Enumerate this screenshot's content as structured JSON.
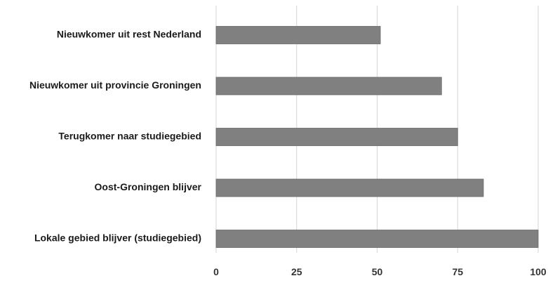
{
  "colors": {
    "bar": "#808080",
    "bar_stroke": "#6a6a6a",
    "grid": "#d6d6d6",
    "text": "#1a1a1a"
  },
  "chart_data": {
    "type": "bar",
    "orientation": "horizontal",
    "categories": [
      "Nieuwkomer uit rest Nederland",
      "Nieuwkomer uit provincie Groningen",
      "Terugkomer naar studiegebied",
      "Oost-Groningen blijver",
      "Lokale gebied blijver (studiegebied)"
    ],
    "values": [
      51,
      70,
      75,
      83,
      100
    ],
    "xlim": [
      0,
      100
    ],
    "x_ticks": [
      0,
      25,
      50,
      75,
      100
    ],
    "x_tick_labels": [
      "0",
      "25",
      "50",
      "75",
      "100"
    ],
    "grid": true,
    "legend": false,
    "title": "",
    "xlabel": "",
    "ylabel": ""
  }
}
